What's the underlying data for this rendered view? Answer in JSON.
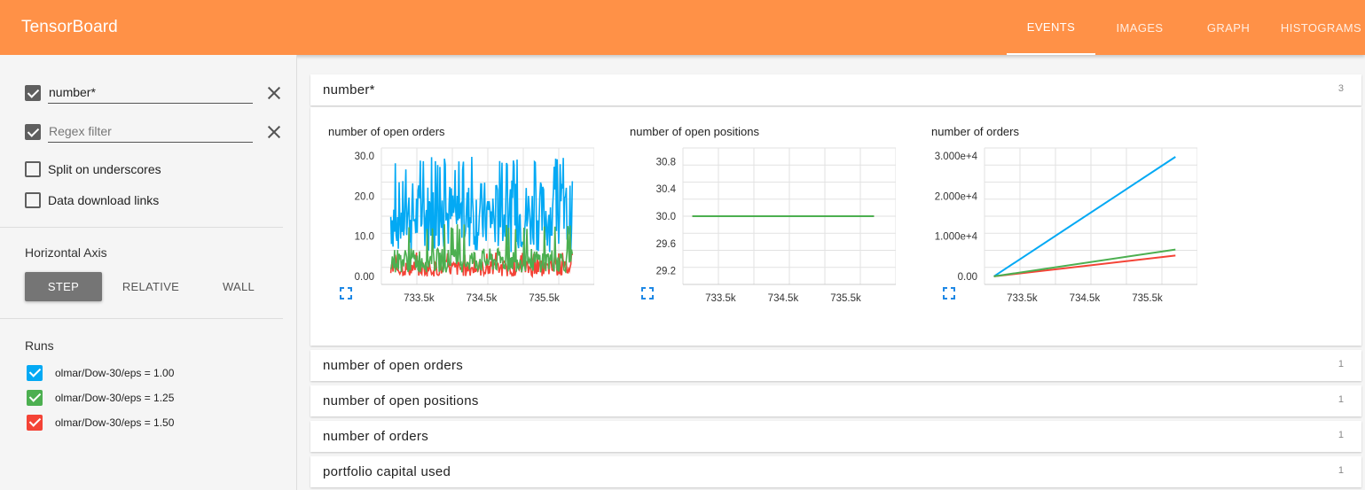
{
  "header": {
    "title": "TensorBoard",
    "tabs": [
      {
        "label": "EVENTS",
        "active": true
      },
      {
        "label": "IMAGES",
        "active": false
      },
      {
        "label": "GRAPH",
        "active": false
      },
      {
        "label": "HISTOGRAMS",
        "active": false
      }
    ]
  },
  "sidebar": {
    "filter_value": "number*",
    "regex_placeholder": "Regex filter",
    "split_label": "Split on underscores",
    "download_label": "Data download links",
    "horizontal_axis_title": "Horizontal Axis",
    "axis_buttons": [
      {
        "label": "STEP",
        "selected": true
      },
      {
        "label": "RELATIVE",
        "selected": false
      },
      {
        "label": "WALL",
        "selected": false
      }
    ],
    "runs_title": "Runs",
    "runs": [
      {
        "label": "olmar/Dow-30/eps = 1.00",
        "color": "#03a9f4",
        "checked": true
      },
      {
        "label": "olmar/Dow-30/eps = 1.25",
        "color": "#4caf50",
        "checked": true
      },
      {
        "label": "olmar/Dow-30/eps = 1.50",
        "color": "#f44336",
        "checked": true
      }
    ]
  },
  "main": {
    "groups": [
      {
        "title": "number*",
        "count": "3",
        "expanded": true
      },
      {
        "title": "number of open orders",
        "count": "1"
      },
      {
        "title": "number of open positions",
        "count": "1"
      },
      {
        "title": "number of orders",
        "count": "1"
      },
      {
        "title": "portfolio capital used",
        "count": "1"
      }
    ]
  },
  "chart_data": [
    {
      "type": "line",
      "title": "number of open orders",
      "xlim": [
        732900,
        736300
      ],
      "ylim": [
        -2,
        32
      ],
      "x_ticks": [
        733500,
        734500,
        735500
      ],
      "x_tick_labels": [
        "733.5k",
        "734.5k",
        "735.5k"
      ],
      "y_ticks": [
        0,
        10,
        20,
        30
      ],
      "y_tick_labels": [
        "0.00",
        "10.0",
        "20.0",
        "30.0"
      ],
      "grid": true,
      "series": [
        {
          "color": "#03a9f4",
          "x_range": [
            733050,
            735950
          ],
          "mean": 15,
          "spread": 9,
          "min": 2,
          "max": 30,
          "noisy": true
        },
        {
          "color": "#f44336",
          "x_range": [
            733050,
            735950
          ],
          "mean": 2,
          "spread": 2,
          "min": 0,
          "max": 6,
          "noisy": true
        },
        {
          "color": "#4caf50",
          "x_range": [
            733050,
            735950
          ],
          "mean": 4,
          "spread": 3,
          "min": 0,
          "max": 13,
          "noisy": true
        }
      ]
    },
    {
      "type": "line",
      "title": "number of open positions",
      "xlim": [
        732900,
        736300
      ],
      "ylim": [
        29.0,
        31.0
      ],
      "x_ticks": [
        733500,
        734500,
        735500
      ],
      "x_tick_labels": [
        "733.5k",
        "734.5k",
        "735.5k"
      ],
      "y_ticks": [
        29.2,
        29.6,
        30.0,
        30.4,
        30.8
      ],
      "y_tick_labels": [
        "29.2",
        "29.6",
        "30.0",
        "30.4",
        "30.8"
      ],
      "grid": true,
      "series": [
        {
          "color": "#03a9f4",
          "x": [
            733050,
            735950
          ],
          "y": [
            30.0,
            30.0
          ]
        },
        {
          "color": "#f44336",
          "x": [
            733050,
            735950
          ],
          "y": [
            30.0,
            30.0
          ]
        },
        {
          "color": "#4caf50",
          "x": [
            733050,
            735950
          ],
          "y": [
            30.0,
            30.0
          ]
        }
      ]
    },
    {
      "type": "line",
      "title": "number of orders",
      "xlim": [
        732900,
        736300
      ],
      "ylim": [
        -2000,
        32000
      ],
      "x_ticks": [
        733500,
        734500,
        735500
      ],
      "x_tick_labels": [
        "733.5k",
        "734.5k",
        "735.5k"
      ],
      "y_ticks": [
        0,
        10000,
        20000,
        30000
      ],
      "y_tick_labels": [
        "0.00",
        "1.000e+4",
        "2.000e+4",
        "3.000e+4"
      ],
      "grid": true,
      "series": [
        {
          "color": "#03a9f4",
          "x": [
            733050,
            735950
          ],
          "y": [
            0,
            29800
          ]
        },
        {
          "color": "#f44336",
          "x": [
            733050,
            735950
          ],
          "y": [
            0,
            5200
          ]
        },
        {
          "color": "#4caf50",
          "x": [
            733050,
            735950
          ],
          "y": [
            0,
            6700
          ]
        }
      ]
    }
  ]
}
